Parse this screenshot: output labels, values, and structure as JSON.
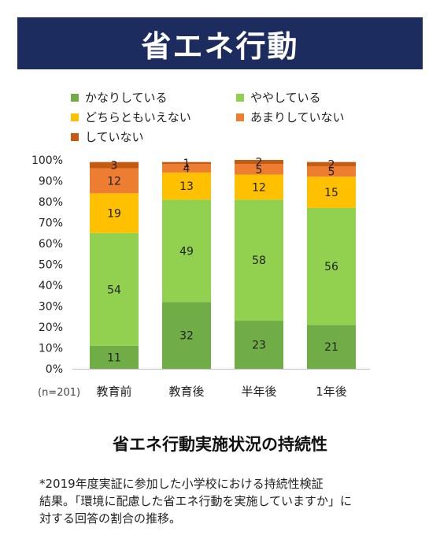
{
  "header": {
    "title": "省エネ行動"
  },
  "chart_data": {
    "type": "bar",
    "stacked": true,
    "categories": [
      "教育前",
      "教育後",
      "半年後",
      "1年後"
    ],
    "series": [
      {
        "name": "かなりしている",
        "color": "#70ad47",
        "values": [
          11,
          32,
          23,
          21
        ]
      },
      {
        "name": "ややしている",
        "color": "#92d050",
        "values": [
          54,
          49,
          58,
          56
        ]
      },
      {
        "name": "どちらともいえない",
        "color": "#ffc000",
        "values": [
          19,
          13,
          12,
          15
        ]
      },
      {
        "name": "あまりしていない",
        "color": "#ed7d31",
        "values": [
          12,
          4,
          5,
          5
        ]
      },
      {
        "name": "していない",
        "color": "#c55a11",
        "values": [
          3,
          1,
          2,
          2
        ]
      }
    ],
    "yticks": [
      "0%",
      "10%",
      "20%",
      "30%",
      "40%",
      "50%",
      "60%",
      "70%",
      "80%",
      "90%",
      "100%"
    ],
    "ylim": [
      0,
      100
    ],
    "sample_note": "(n=201)",
    "legend_position": "top",
    "grid": false,
    "title": "省エネ行動実施状況の持続性"
  },
  "footnote": {
    "lines": [
      "*2019年度実証に参加した小学校における持続性検証",
      "結果。「環境に配慮した省エネ行動を実施していますか」に",
      "対する回答の割合の推移。"
    ]
  }
}
